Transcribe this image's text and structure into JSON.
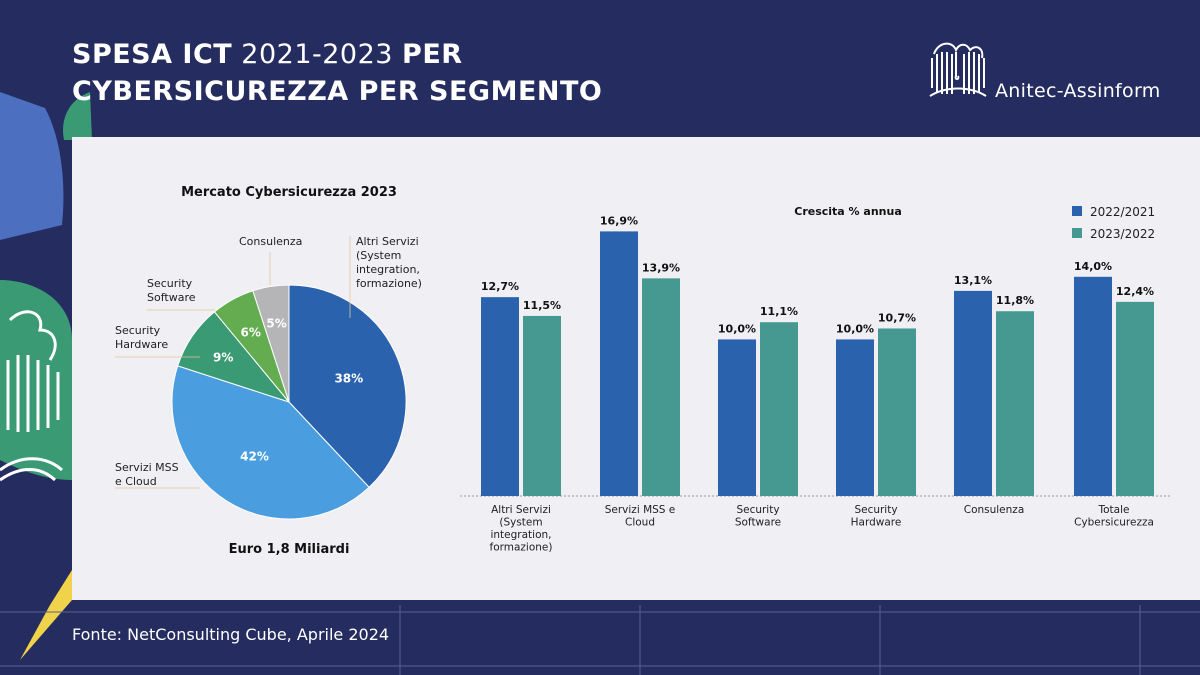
{
  "header": {
    "title_line1_bold_a": "SPESA ICT",
    "title_line1_normal": " 2021-2023 ",
    "title_line1_bold_b": "PER",
    "title_line2": "CYBERSICUREZZA PER SEGMENTO",
    "logo_text": "Anitec-Assinform"
  },
  "footer": {
    "source": "Fonte: NetConsulting Cube, Aprile 2024"
  },
  "colors": {
    "background": "#252c5f",
    "panel": "#efeff4",
    "series_2022_2021": "#2a62ad",
    "series_2023_2022": "#459990",
    "pie_altri": "#2a62ad",
    "pie_mss": "#4a9ee0",
    "pie_hardware": "#3a9a74",
    "pie_software": "#63ad50",
    "pie_consulenza": "#b5b5b8"
  },
  "chart_data": [
    {
      "type": "pie",
      "title": "Mercato Cybersicurezza 2023",
      "subtitle": "Euro 1,8 Miliardi",
      "slices": [
        {
          "label": [
            "Altri Servizi",
            "(System",
            "integration,",
            "formazione)"
          ],
          "value": 38,
          "value_label": "38%",
          "color": "#2a62ad"
        },
        {
          "label": [
            "Servizi MSS",
            "e Cloud"
          ],
          "value": 42,
          "value_label": "42%",
          "color": "#4a9ee0"
        },
        {
          "label": [
            "Security",
            "Hardware"
          ],
          "value": 9,
          "value_label": "9%",
          "color": "#3a9a74"
        },
        {
          "label": [
            "Security",
            "Software"
          ],
          "value": 6,
          "value_label": "6%",
          "color": "#63ad50"
        },
        {
          "label": [
            "Consulenza"
          ],
          "value": 5,
          "value_label": "5%",
          "color": "#b5b5b8"
        }
      ]
    },
    {
      "type": "bar",
      "title": "Crescita % annua",
      "categories": [
        [
          "Altri Servizi",
          "(System",
          "integration,",
          "formazione)"
        ],
        [
          "Servizi MSS e",
          "Cloud"
        ],
        [
          "Security",
          "Software"
        ],
        [
          "Security",
          "Hardware"
        ],
        [
          "Consulenza"
        ],
        [
          "Totale",
          "Cybersicurezza"
        ]
      ],
      "series": [
        {
          "name": "2022/2021",
          "color": "#2a62ad",
          "values": [
            12.7,
            16.9,
            10.0,
            10.0,
            13.1,
            14.0
          ],
          "labels": [
            "12,7%",
            "16,9%",
            "10,0%",
            "10,0%",
            "13,1%",
            "14,0%"
          ]
        },
        {
          "name": "2023/2022",
          "color": "#459990",
          "values": [
            11.5,
            13.9,
            11.1,
            10.7,
            11.8,
            12.4
          ],
          "labels": [
            "11,5%",
            "13,9%",
            "11,1%",
            "10,7%",
            "11,8%",
            "12,4%"
          ]
        }
      ],
      "ylim": [
        0,
        17.5
      ],
      "legend": "top-right",
      "grid": false
    }
  ]
}
